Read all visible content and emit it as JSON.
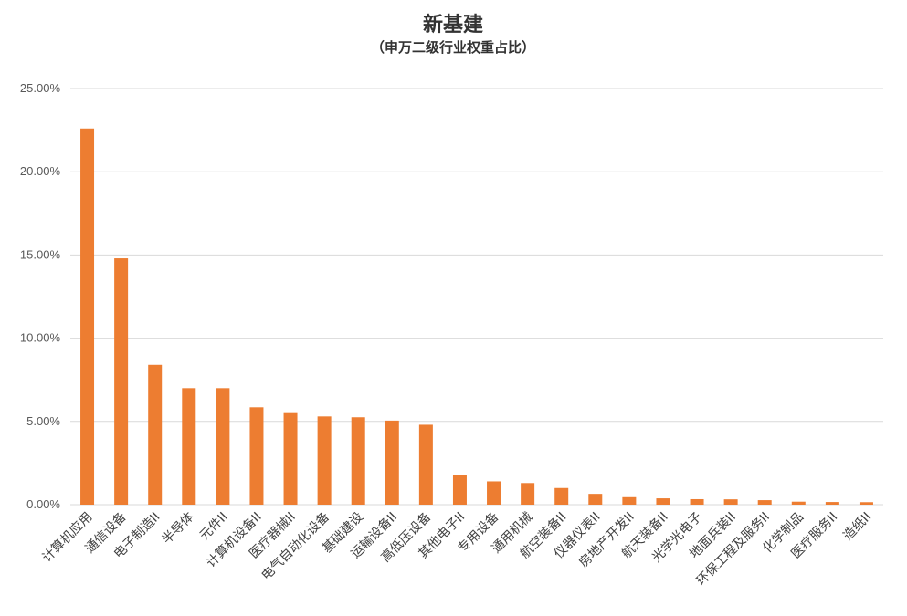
{
  "chart_data": {
    "type": "bar",
    "title": "新基建",
    "subtitle": "（申万二级行业权重占比）",
    "xlabel": "",
    "ylabel": "",
    "categories": [
      "计算机应用",
      "通信设备",
      "电子制造II",
      "半导体",
      "元件II",
      "计算机设备II",
      "医疗器械II",
      "电气自动化设备",
      "基础建设",
      "运输设备II",
      "高低压设备",
      "其他电子II",
      "专用设备",
      "通用机械",
      "航空装备II",
      "仪器仪表II",
      "房地产开发II",
      "航天装备II",
      "光学光电子",
      "地面兵装II",
      "环保工程及服务II",
      "化学制品",
      "医疗服务II",
      "造纸II"
    ],
    "values": [
      22.6,
      14.8,
      8.4,
      7.0,
      7.0,
      5.85,
      5.5,
      5.3,
      5.25,
      5.05,
      4.8,
      1.8,
      1.4,
      1.3,
      1.0,
      0.65,
      0.45,
      0.38,
      0.33,
      0.32,
      0.27,
      0.18,
      0.16,
      0.15
    ],
    "ylim": [
      0,
      25
    ],
    "yticks": [
      "0.00%",
      "5.00%",
      "10.00%",
      "15.00%",
      "20.00%",
      "25.00%"
    ],
    "ytick_values": [
      0,
      5,
      10,
      15,
      20,
      25
    ],
    "grid": true,
    "legend": "none",
    "bar_color": "#ED7D31"
  }
}
